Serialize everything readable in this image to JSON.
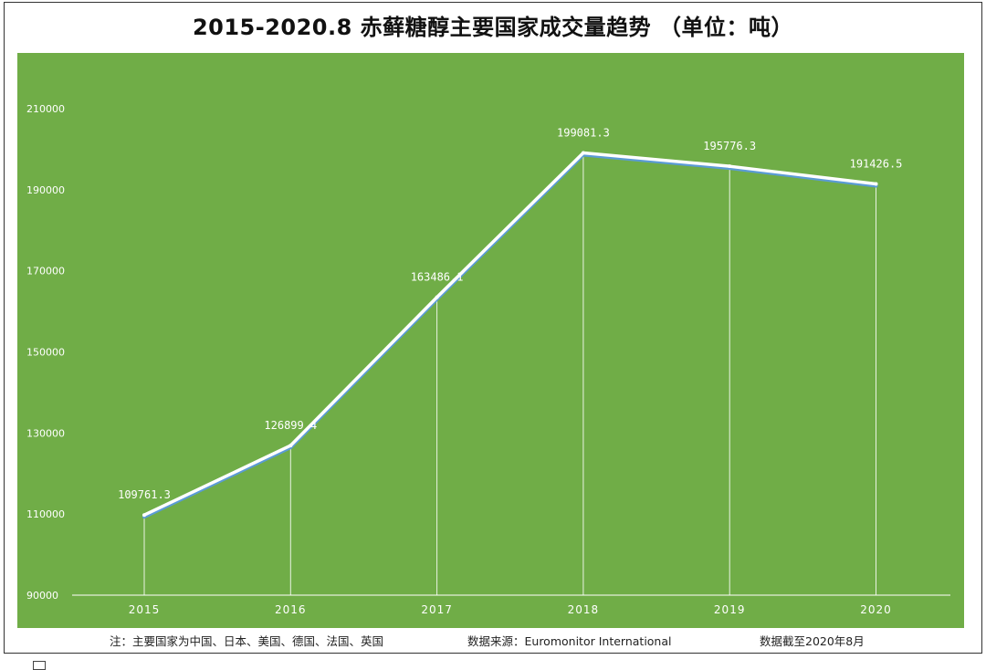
{
  "title": "2015-2020.8 赤藓糖醇主要国家成交量趋势 （单位：吨）",
  "footer": {
    "note": "注：主要国家为中国、日本、美国、德国、法国、英国",
    "source": "数据来源：Euromonitor International",
    "cutoff": "数据截至2020年8月"
  },
  "colors": {
    "plot_background": "#70ad47",
    "line": "#ffffff",
    "line_shadow": "#5b9bd5",
    "text": "#ffffff"
  },
  "chart_data": {
    "type": "line",
    "title": "2015-2020.8 赤藓糖醇主要国家成交量趋势 （单位：吨）",
    "xlabel": "",
    "ylabel": "",
    "categories": [
      "2015",
      "2016",
      "2017",
      "2018",
      "2019",
      "2020"
    ],
    "values": [
      109761.3,
      126899.4,
      163486.1,
      199081.3,
      195776.3,
      191426.5
    ],
    "data_labels": [
      "109761.3",
      "126899.4",
      "163486.1",
      "199081.3",
      "195776.3",
      "191426.5"
    ],
    "ylim": [
      90000,
      210000
    ],
    "yticks": [
      90000,
      110000,
      130000,
      150000,
      170000,
      190000,
      210000
    ],
    "ytick_labels": [
      "90000",
      "110000",
      "130000",
      "150000",
      "170000",
      "190000",
      "210000"
    ],
    "grid": false,
    "drop_lines": true,
    "legend": "none"
  }
}
